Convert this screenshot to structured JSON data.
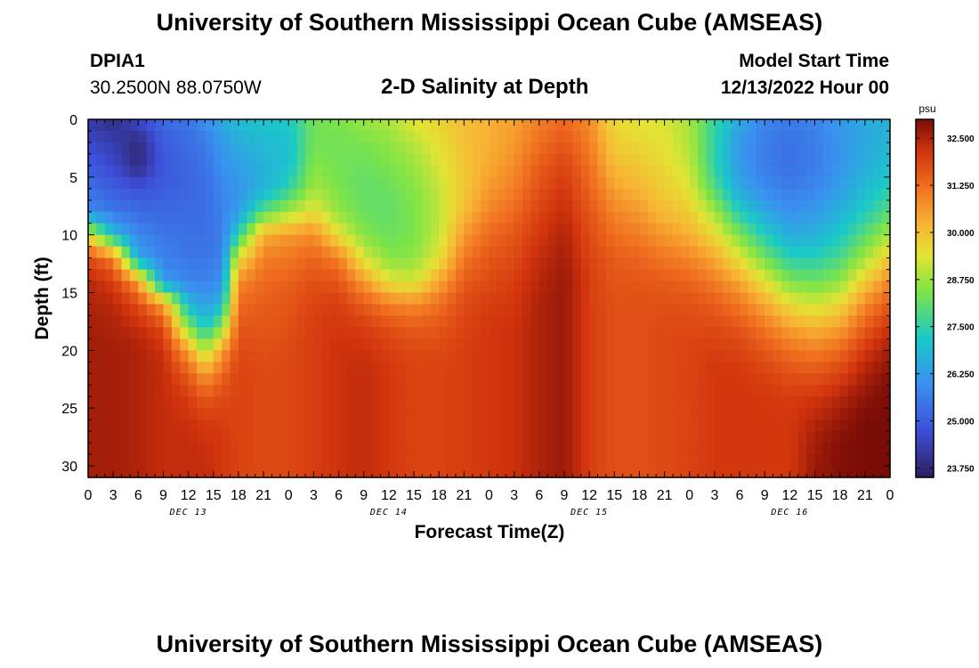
{
  "page": {
    "title_top": "University of Southern Mississippi Ocean Cube (AMSEAS)",
    "title_bottom": "University of Southern Mississippi Ocean Cube (AMSEAS)",
    "station_id": "DPIA1",
    "station_coords": "30.2500N  88.0750W",
    "plot_title": "2-D Salinity at Depth",
    "model_label": "Model Start Time",
    "model_time": "12/13/2022 Hour 00"
  },
  "chart_data": {
    "type": "heatmap",
    "title": "2-D Salinity at Depth",
    "xlabel": "Forecast Time(Z)",
    "ylabel": "Depth (ft)",
    "x_range_hours": [
      0,
      96
    ],
    "y_range_ft": [
      0,
      31
    ],
    "x_tick_labels": [
      "0",
      "3",
      "6",
      "9",
      "12",
      "15",
      "18",
      "21",
      "0",
      "3",
      "6",
      "9",
      "12",
      "15",
      "18",
      "21",
      "0",
      "3",
      "6",
      "9",
      "12",
      "15",
      "18",
      "21",
      "0",
      "3",
      "6",
      "9",
      "12",
      "15",
      "18",
      "21",
      "0"
    ],
    "y_tick_labels": [
      "0",
      "5",
      "10",
      "15",
      "20",
      "25",
      "30"
    ],
    "day_labels": [
      {
        "label": "DEC 13",
        "hour": 12
      },
      {
        "label": "DEC 14",
        "hour": 36
      },
      {
        "label": "DEC 15",
        "hour": 60
      },
      {
        "label": "DEC 16",
        "hour": 84
      }
    ],
    "colorbar": {
      "unit": "psu",
      "min": 23.5,
      "max": 33.0,
      "tick_labels": [
        "32.500",
        "31.250",
        "30.000",
        "28.750",
        "27.500",
        "26.250",
        "25.000",
        "23.750"
      ],
      "tick_values": [
        32.5,
        31.25,
        30.0,
        28.75,
        27.5,
        26.25,
        25.0,
        23.75
      ]
    },
    "profile_hours": [
      0,
      3,
      6,
      9,
      12,
      14,
      16,
      18,
      21,
      24,
      27,
      30,
      33,
      36,
      39,
      42,
      45,
      48,
      51,
      54,
      57,
      60,
      63,
      66,
      69,
      72,
      75,
      78,
      81,
      84,
      87,
      90,
      93,
      96
    ],
    "profile_depths_ft": [
      0,
      2,
      4,
      6,
      8,
      10,
      12,
      14,
      16,
      18,
      20,
      22,
      24,
      26,
      28,
      30,
      31
    ],
    "salinity_psu": [
      [
        24.2,
        24.6,
        25.0,
        25.4,
        25.9,
        29.5,
        31.8,
        32.4,
        32.5,
        32.6,
        32.6,
        32.6,
        32.6,
        32.6,
        32.6,
        32.6,
        32.6
      ],
      [
        23.9,
        24.3,
        24.6,
        25.0,
        25.5,
        27.0,
        31.0,
        32.0,
        32.4,
        32.5,
        32.6,
        32.6,
        32.6,
        32.6,
        32.6,
        32.6,
        32.6
      ],
      [
        24.6,
        23.8,
        23.8,
        24.8,
        25.3,
        25.8,
        26.5,
        30.5,
        31.8,
        32.3,
        32.5,
        32.5,
        32.5,
        32.5,
        32.5,
        32.5,
        32.5
      ],
      [
        25.3,
        25.0,
        24.9,
        25.0,
        25.2,
        25.5,
        25.7,
        26.2,
        30.5,
        31.8,
        32.2,
        32.3,
        32.3,
        32.3,
        32.3,
        32.3,
        32.3
      ],
      [
        25.5,
        25.3,
        25.2,
        25.2,
        25.3,
        25.4,
        25.5,
        25.8,
        26.8,
        28.5,
        30.5,
        31.5,
        32.0,
        32.2,
        32.3,
        32.3,
        32.3
      ],
      [
        26.0,
        25.6,
        25.4,
        25.3,
        25.3,
        25.4,
        25.5,
        25.7,
        26.3,
        27.2,
        28.8,
        30.5,
        31.5,
        32.0,
        32.2,
        32.3,
        32.3
      ],
      [
        26.5,
        26.2,
        26.0,
        25.8,
        25.7,
        25.6,
        25.7,
        26.0,
        26.8,
        28.5,
        30.5,
        31.3,
        31.8,
        32.0,
        32.1,
        32.1,
        32.1
      ],
      [
        27.0,
        26.6,
        26.3,
        26.1,
        26.3,
        27.5,
        29.5,
        30.8,
        31.3,
        31.6,
        31.8,
        31.9,
        31.9,
        31.9,
        31.9,
        31.9,
        31.9
      ],
      [
        27.1,
        26.9,
        26.7,
        26.7,
        28.0,
        30.3,
        31.0,
        31.3,
        31.5,
        31.6,
        31.7,
        31.8,
        31.8,
        31.8,
        31.8,
        31.8,
        31.8
      ],
      [
        27.2,
        27.0,
        27.0,
        27.5,
        28.8,
        30.6,
        31.1,
        31.4,
        31.6,
        31.7,
        31.8,
        31.8,
        31.8,
        31.8,
        31.8,
        31.8,
        31.8
      ],
      [
        28.3,
        28.3,
        28.5,
        28.8,
        29.5,
        30.8,
        31.4,
        31.7,
        31.9,
        32.0,
        32.0,
        32.0,
        32.0,
        32.0,
        32.0,
        32.0,
        32.0
      ],
      [
        28.4,
        28.3,
        28.3,
        28.4,
        28.6,
        29.5,
        31.0,
        31.6,
        32.0,
        32.1,
        32.2,
        32.2,
        32.2,
        32.2,
        32.2,
        32.2,
        32.2
      ],
      [
        28.7,
        28.4,
        28.2,
        28.1,
        28.2,
        28.5,
        29.3,
        30.6,
        31.5,
        32.0,
        32.2,
        32.3,
        32.3,
        32.3,
        32.3,
        32.3,
        32.3
      ],
      [
        28.9,
        28.6,
        28.4,
        28.2,
        28.1,
        28.2,
        28.5,
        29.4,
        31.0,
        31.7,
        32.0,
        32.1,
        32.1,
        32.1,
        32.1,
        32.1,
        32.1
      ],
      [
        29.4,
        29.0,
        28.7,
        28.5,
        28.4,
        28.4,
        28.6,
        29.2,
        30.8,
        31.5,
        31.8,
        31.9,
        31.9,
        31.9,
        31.9,
        31.9,
        31.9
      ],
      [
        29.7,
        29.5,
        29.3,
        29.1,
        29.0,
        29.1,
        29.4,
        30.4,
        31.2,
        31.6,
        31.8,
        31.9,
        31.9,
        31.9,
        31.9,
        31.9,
        31.9
      ],
      [
        30.1,
        30.0,
        29.9,
        29.9,
        30.1,
        30.6,
        31.1,
        31.5,
        31.8,
        31.9,
        32.0,
        32.0,
        32.0,
        32.0,
        32.0,
        32.0,
        32.0
      ],
      [
        30.3,
        30.3,
        30.4,
        30.6,
        30.9,
        31.3,
        31.6,
        31.8,
        32.0,
        32.1,
        32.1,
        32.1,
        32.1,
        32.1,
        32.1,
        32.1,
        32.1
      ],
      [
        30.5,
        30.6,
        30.8,
        31.0,
        31.3,
        31.6,
        31.8,
        32.0,
        32.1,
        32.2,
        32.2,
        32.2,
        32.2,
        32.2,
        32.2,
        32.2,
        32.2
      ],
      [
        31.0,
        31.2,
        31.5,
        31.7,
        31.9,
        32.1,
        32.3,
        32.4,
        32.5,
        32.5,
        32.5,
        32.5,
        32.5,
        32.5,
        32.5,
        32.5,
        32.5
      ],
      [
        31.3,
        31.6,
        31.9,
        32.1,
        32.3,
        32.5,
        32.6,
        32.7,
        32.7,
        32.7,
        32.7,
        32.7,
        32.7,
        32.7,
        32.7,
        32.7,
        32.7
      ],
      [
        30.8,
        31.0,
        31.2,
        31.4,
        31.6,
        31.8,
        31.9,
        32.0,
        32.0,
        32.0,
        32.0,
        32.0,
        32.0,
        32.0,
        32.0,
        32.0,
        32.0
      ],
      [
        29.6,
        29.8,
        30.1,
        30.5,
        30.9,
        31.2,
        31.5,
        31.6,
        31.7,
        31.7,
        31.7,
        31.7,
        31.7,
        31.7,
        31.7,
        31.7,
        31.7
      ],
      [
        29.4,
        29.6,
        29.9,
        30.2,
        30.6,
        31.0,
        31.4,
        31.6,
        31.7,
        31.7,
        31.7,
        31.7,
        31.7,
        31.7,
        31.7,
        31.7,
        31.7
      ],
      [
        29.3,
        29.4,
        29.6,
        29.8,
        30.1,
        30.6,
        31.1,
        31.5,
        31.7,
        31.8,
        31.8,
        31.8,
        31.8,
        31.8,
        31.8,
        31.8,
        31.8
      ],
      [
        28.8,
        28.9,
        29.1,
        29.4,
        29.8,
        30.3,
        30.9,
        31.4,
        31.7,
        31.8,
        31.9,
        31.9,
        31.9,
        31.9,
        31.9,
        31.9,
        31.9
      ],
      [
        27.6,
        27.5,
        27.5,
        27.9,
        28.8,
        29.6,
        30.4,
        31.0,
        31.5,
        31.8,
        32.0,
        32.1,
        32.1,
        32.1,
        32.1,
        32.1,
        32.1
      ],
      [
        26.5,
        26.2,
        26.2,
        26.5,
        27.3,
        28.4,
        29.4,
        30.4,
        31.1,
        31.6,
        31.9,
        32.1,
        32.1,
        32.1,
        32.1,
        32.1,
        32.1
      ],
      [
        25.8,
        25.6,
        25.6,
        25.9,
        26.5,
        27.3,
        28.3,
        29.4,
        30.4,
        31.1,
        31.6,
        31.9,
        32.1,
        32.1,
        32.1,
        32.1,
        32.1
      ],
      [
        25.6,
        25.4,
        25.4,
        25.6,
        26.0,
        26.6,
        27.4,
        28.4,
        29.5,
        30.5,
        31.2,
        31.7,
        32.0,
        32.1,
        32.1,
        32.1,
        32.1
      ],
      [
        25.8,
        25.6,
        25.6,
        25.8,
        26.2,
        26.7,
        27.4,
        28.2,
        29.2,
        30.2,
        31.0,
        31.6,
        32.1,
        32.4,
        32.6,
        32.7,
        32.7
      ],
      [
        26.2,
        26.1,
        26.1,
        26.3,
        26.7,
        27.2,
        27.8,
        28.6,
        29.6,
        30.5,
        31.3,
        31.9,
        32.4,
        32.7,
        32.9,
        32.9,
        32.9
      ],
      [
        26.5,
        26.5,
        26.6,
        26.9,
        27.3,
        28.0,
        28.8,
        29.8,
        30.8,
        31.5,
        32.1,
        32.5,
        32.8,
        33.0,
        33.0,
        33.0,
        33.0
      ],
      [
        26.7,
        26.8,
        27.0,
        27.4,
        28.0,
        28.9,
        29.9,
        30.9,
        31.6,
        32.2,
        32.6,
        32.9,
        33.0,
        33.0,
        33.0,
        33.0,
        33.0
      ]
    ]
  }
}
